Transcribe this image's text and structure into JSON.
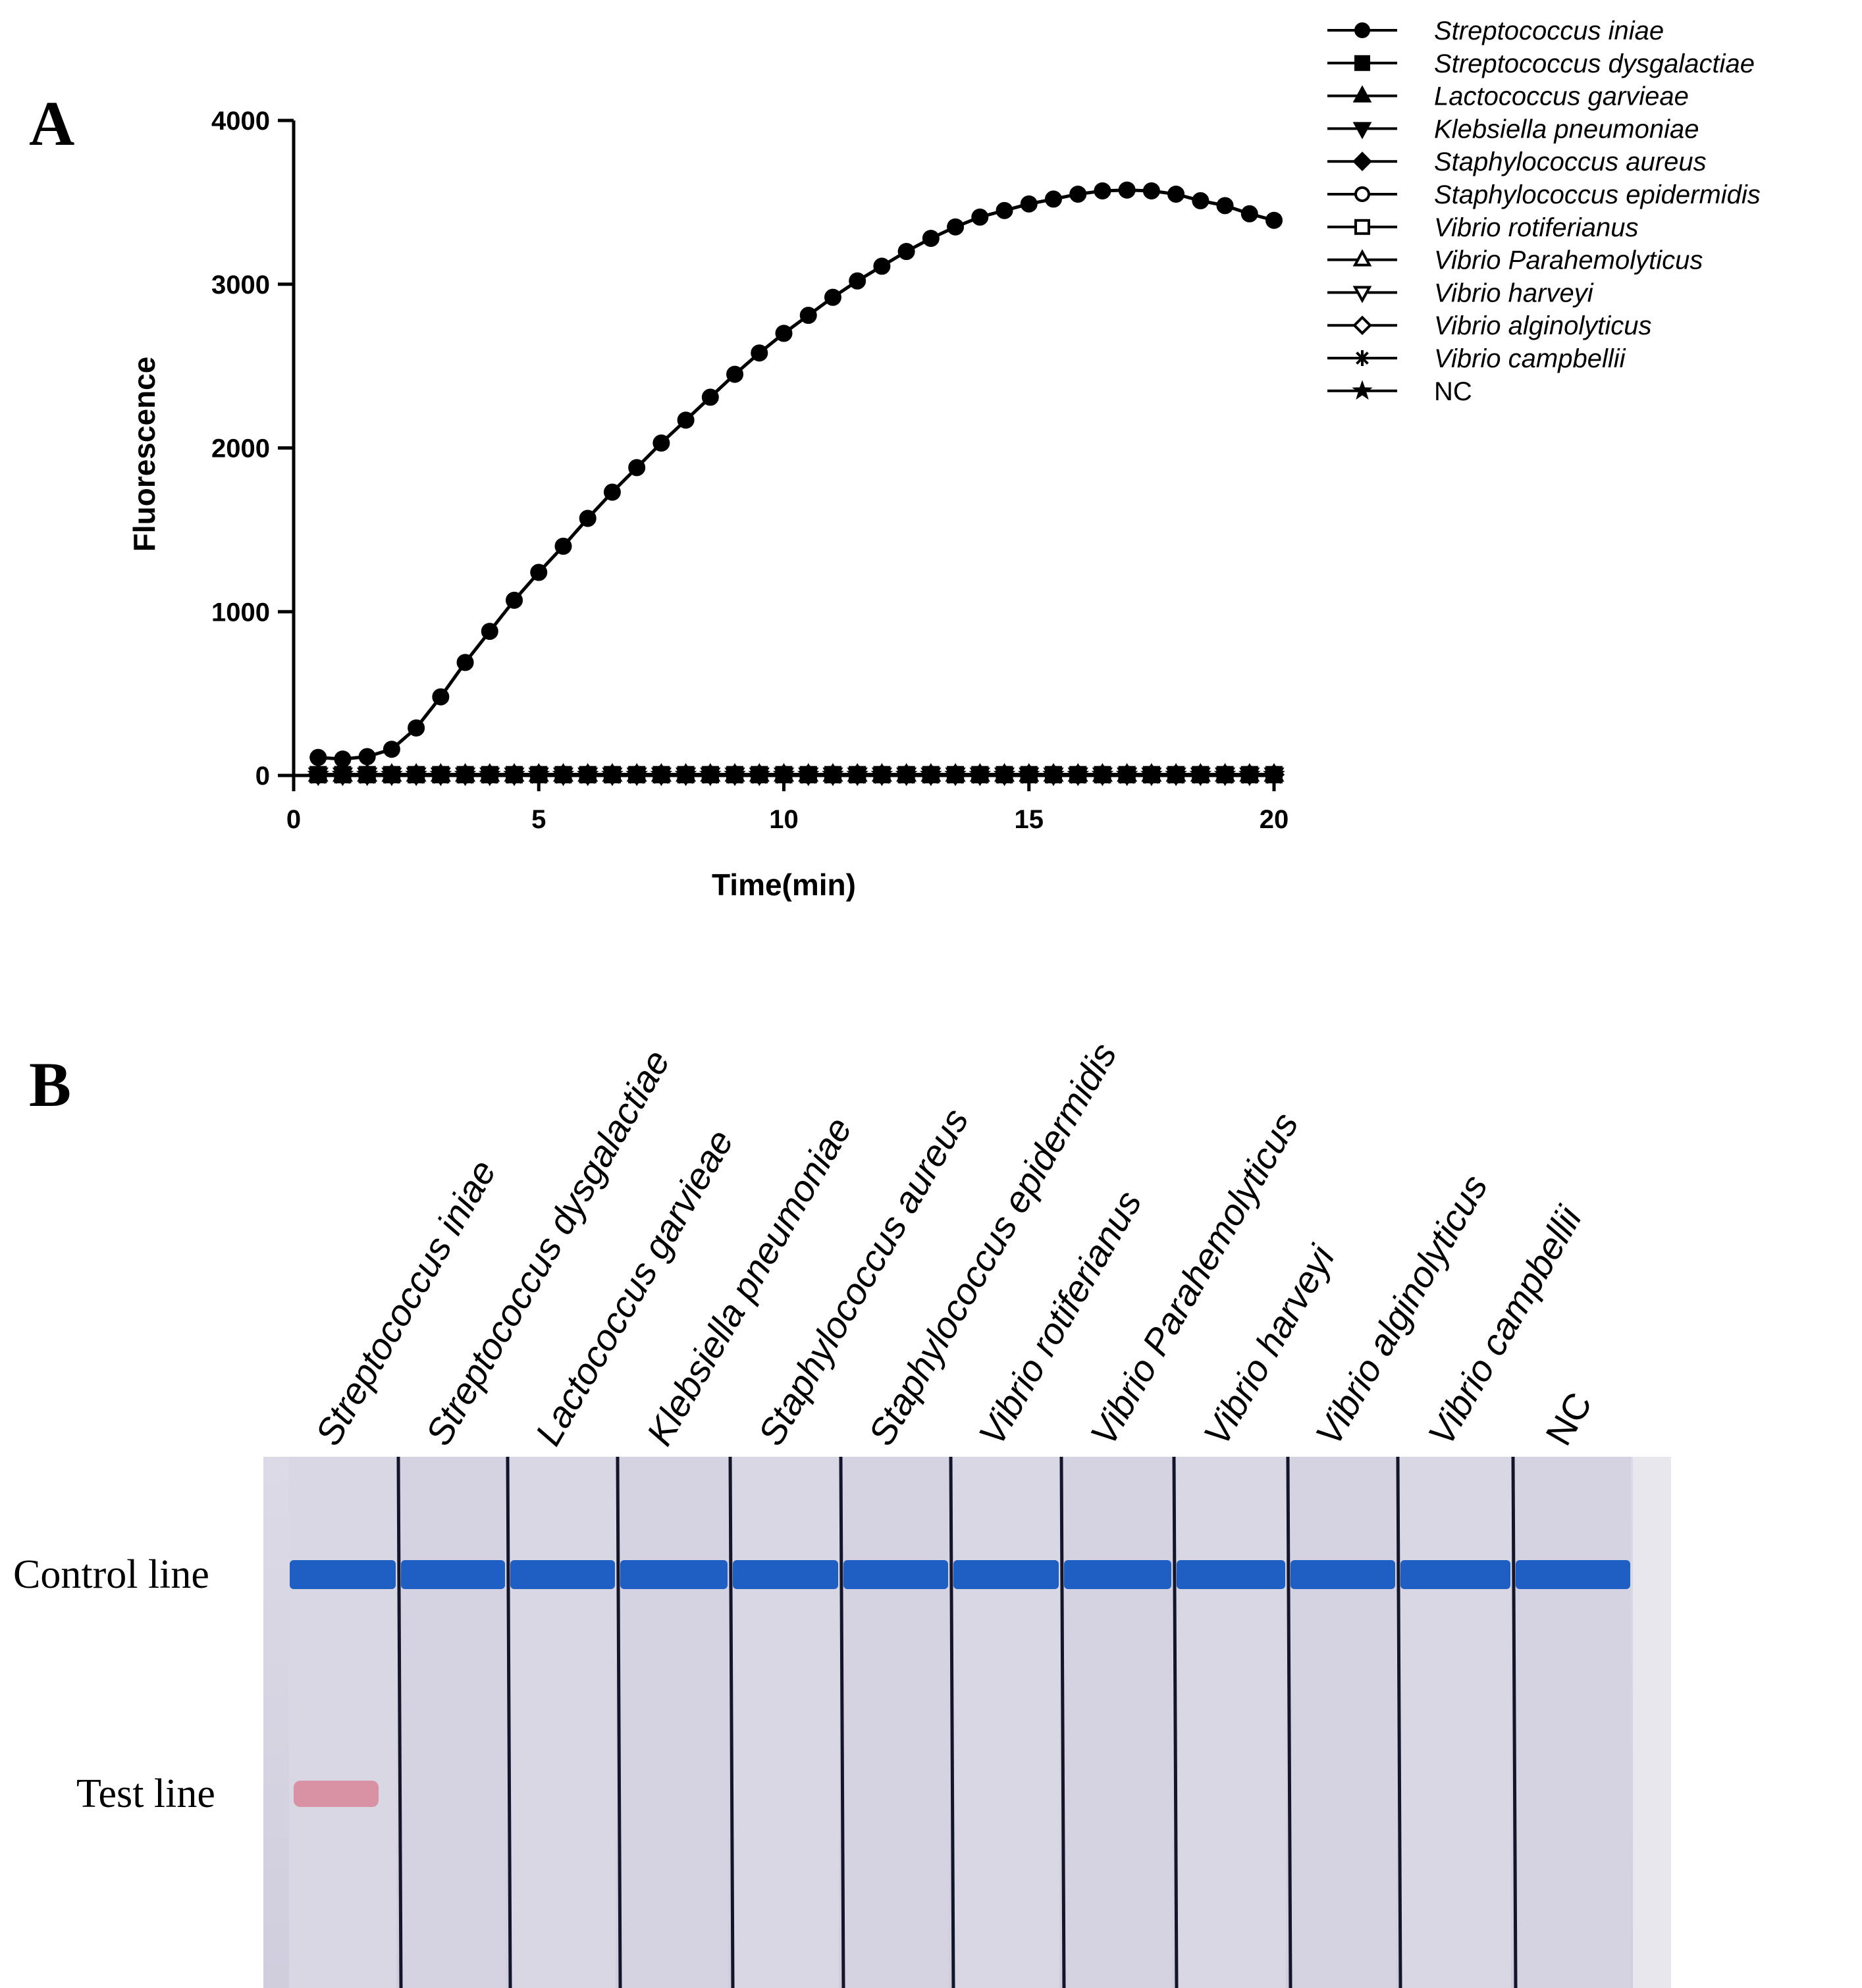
{
  "panel_a_label": "A",
  "panel_b_label": "B",
  "chart_data": {
    "type": "line",
    "title": "",
    "xlabel": "Time(min)",
    "ylabel": "Fluorescence",
    "xlim": [
      0,
      20
    ],
    "ylim": [
      0,
      4000
    ],
    "x_ticks": [
      0,
      5,
      10,
      15,
      20
    ],
    "y_ticks": [
      0,
      1000,
      2000,
      3000,
      4000
    ],
    "x": [
      0.5,
      1,
      1.5,
      2,
      2.5,
      3,
      3.5,
      4,
      4.5,
      5,
      5.5,
      6,
      6.5,
      7,
      7.5,
      8,
      8.5,
      9,
      9.5,
      10,
      10.5,
      11,
      11.5,
      12,
      12.5,
      13,
      13.5,
      14,
      14.5,
      15,
      15.5,
      16,
      16.5,
      17,
      17.5,
      18,
      18.5,
      19,
      19.5,
      20
    ],
    "legend_position": "top-right outside",
    "series": [
      {
        "name": "Streptococcus iniae",
        "marker": "circle-filled",
        "values": [
          110,
          100,
          115,
          160,
          290,
          480,
          690,
          880,
          1070,
          1240,
          1400,
          1570,
          1730,
          1880,
          2030,
          2170,
          2310,
          2450,
          2580,
          2700,
          2810,
          2920,
          3020,
          3110,
          3200,
          3280,
          3350,
          3410,
          3450,
          3490,
          3520,
          3550,
          3570,
          3575,
          3570,
          3550,
          3510,
          3480,
          3430,
          3390
        ]
      },
      {
        "name": "Streptococcus dysgalactiae",
        "marker": "square-filled",
        "values": [
          5,
          5,
          5,
          5,
          5,
          5,
          5,
          5,
          5,
          5,
          5,
          5,
          5,
          5,
          5,
          5,
          5,
          5,
          5,
          5,
          5,
          5,
          5,
          5,
          5,
          5,
          5,
          5,
          5,
          5,
          5,
          5,
          5,
          5,
          5,
          5,
          5,
          5,
          5,
          5
        ]
      },
      {
        "name": "Lactococcus garvieae",
        "marker": "triangle-up-filled",
        "values": [
          5,
          5,
          5,
          5,
          5,
          5,
          5,
          5,
          5,
          5,
          5,
          5,
          5,
          5,
          5,
          5,
          5,
          5,
          5,
          5,
          5,
          5,
          5,
          5,
          5,
          5,
          5,
          5,
          5,
          5,
          5,
          5,
          5,
          5,
          5,
          5,
          5,
          5,
          5,
          5
        ]
      },
      {
        "name": "Klebsiella pneumoniae",
        "marker": "triangle-down-filled",
        "values": [
          5,
          5,
          5,
          5,
          5,
          5,
          5,
          5,
          5,
          5,
          5,
          5,
          5,
          5,
          5,
          5,
          5,
          5,
          5,
          5,
          5,
          5,
          5,
          5,
          5,
          5,
          5,
          5,
          5,
          5,
          5,
          5,
          5,
          5,
          5,
          5,
          5,
          5,
          5,
          5
        ]
      },
      {
        "name": "Staphylococcus aureus",
        "marker": "diamond-filled",
        "values": [
          5,
          5,
          5,
          5,
          5,
          5,
          5,
          5,
          5,
          5,
          5,
          5,
          5,
          5,
          5,
          5,
          5,
          5,
          5,
          5,
          5,
          5,
          5,
          5,
          5,
          5,
          5,
          5,
          5,
          5,
          5,
          5,
          5,
          5,
          5,
          5,
          5,
          5,
          5,
          5
        ]
      },
      {
        "name": "Staphylococcus epidermidis",
        "marker": "circle-open",
        "values": [
          5,
          5,
          5,
          5,
          5,
          5,
          5,
          5,
          5,
          5,
          5,
          5,
          5,
          5,
          5,
          5,
          5,
          5,
          5,
          5,
          5,
          5,
          5,
          5,
          5,
          5,
          5,
          5,
          5,
          5,
          5,
          5,
          5,
          5,
          5,
          5,
          5,
          5,
          5,
          5
        ]
      },
      {
        "name": "Vibrio rotiferianus",
        "marker": "square-open",
        "values": [
          5,
          5,
          5,
          5,
          5,
          5,
          5,
          5,
          5,
          5,
          5,
          5,
          5,
          5,
          5,
          5,
          5,
          5,
          5,
          5,
          5,
          5,
          5,
          5,
          5,
          5,
          5,
          5,
          5,
          5,
          5,
          5,
          5,
          5,
          5,
          5,
          5,
          5,
          5,
          5
        ]
      },
      {
        "name": "Vibrio Parahemolyticus",
        "marker": "triangle-up-open",
        "values": [
          5,
          5,
          5,
          5,
          5,
          5,
          5,
          5,
          5,
          5,
          5,
          5,
          5,
          5,
          5,
          5,
          5,
          5,
          5,
          5,
          5,
          5,
          5,
          5,
          5,
          5,
          5,
          5,
          5,
          5,
          5,
          5,
          5,
          5,
          5,
          5,
          5,
          5,
          5,
          5
        ]
      },
      {
        "name": "Vibrio harveyi",
        "marker": "triangle-down-open",
        "values": [
          5,
          5,
          5,
          5,
          5,
          5,
          5,
          5,
          5,
          5,
          5,
          5,
          5,
          5,
          5,
          5,
          5,
          5,
          5,
          5,
          5,
          5,
          5,
          5,
          5,
          5,
          5,
          5,
          5,
          5,
          5,
          5,
          5,
          5,
          5,
          5,
          5,
          5,
          5,
          5
        ]
      },
      {
        "name": "Vibrio alginolyticus",
        "marker": "diamond-open",
        "values": [
          5,
          5,
          5,
          5,
          5,
          5,
          5,
          5,
          5,
          5,
          5,
          5,
          5,
          5,
          5,
          5,
          5,
          5,
          5,
          5,
          5,
          5,
          5,
          5,
          5,
          5,
          5,
          5,
          5,
          5,
          5,
          5,
          5,
          5,
          5,
          5,
          5,
          5,
          5,
          5
        ]
      },
      {
        "name": "Vibrio campbellii",
        "marker": "asterisk",
        "values": [
          5,
          5,
          5,
          5,
          5,
          5,
          5,
          5,
          5,
          5,
          5,
          5,
          5,
          5,
          5,
          5,
          5,
          5,
          5,
          5,
          5,
          5,
          5,
          5,
          5,
          5,
          5,
          5,
          5,
          5,
          5,
          5,
          5,
          5,
          5,
          5,
          5,
          5,
          5,
          5
        ]
      },
      {
        "name": "NC",
        "marker": "star",
        "values": [
          5,
          5,
          5,
          5,
          5,
          5,
          5,
          5,
          5,
          5,
          5,
          5,
          5,
          5,
          5,
          5,
          5,
          5,
          5,
          5,
          5,
          5,
          5,
          5,
          5,
          5,
          5,
          5,
          5,
          5,
          5,
          5,
          5,
          5,
          5,
          5,
          5,
          5,
          5,
          5
        ]
      }
    ]
  },
  "legend_labels": [
    "Streptococcus iniae",
    "Streptococcus dysgalactiae",
    "Lactococcus garvieae",
    "Klebsiella pneumoniae",
    "Staphylococcus aureus",
    "Staphylococcus epidermidis",
    "Vibrio rotiferianus",
    "Vibrio Parahemolyticus",
    "Vibrio harveyi",
    "Vibrio alginolyticus",
    "Vibrio campbellii",
    "NC"
  ],
  "strip_panel": {
    "control_line_label": "Control line",
    "test_line_label": "Test line",
    "lanes": [
      {
        "label": "Streptococcus iniae",
        "control_line": true,
        "test_line": true
      },
      {
        "label": "Streptococcus dysgalactiae",
        "control_line": true,
        "test_line": false
      },
      {
        "label": "Lactococcus garvieae",
        "control_line": true,
        "test_line": false
      },
      {
        "label": "Klebsiella pneumoniae",
        "control_line": true,
        "test_line": false
      },
      {
        "label": "Staphylococcus aureus",
        "control_line": true,
        "test_line": false
      },
      {
        "label": "Staphylococcus epidermidis",
        "control_line": true,
        "test_line": false
      },
      {
        "label": "Vibrio rotiferianus",
        "control_line": true,
        "test_line": false
      },
      {
        "label": "Vibrio Parahemolyticus",
        "control_line": true,
        "test_line": false
      },
      {
        "label": "Vibrio harveyi",
        "control_line": true,
        "test_line": false
      },
      {
        "label": "Vibrio alginolyticus",
        "control_line": true,
        "test_line": false
      },
      {
        "label": "Vibrio campbellii",
        "control_line": true,
        "test_line": false
      },
      {
        "label": "NC",
        "control_line": true,
        "test_line": false
      }
    ],
    "colors": {
      "strip_background": "#d7d5e2",
      "control_line": "#1f5fc4",
      "test_line": "#d88a9c",
      "divider": "#14142a"
    }
  }
}
